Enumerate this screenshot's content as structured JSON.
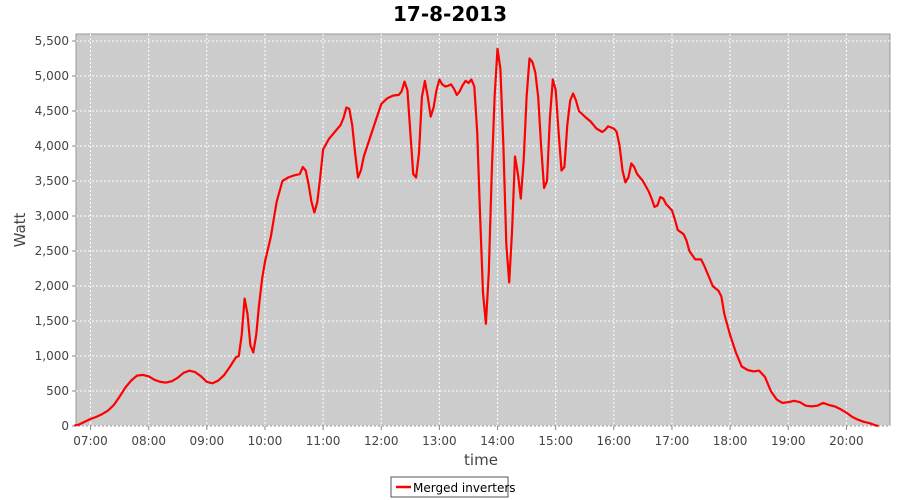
{
  "chart_data": {
    "type": "line",
    "title": "17-8-2013",
    "xlabel": "time",
    "ylabel": "Watt",
    "x_unit": "hours of day",
    "xlim": [
      6.75,
      20.75
    ],
    "ylim": [
      0,
      5600
    ],
    "x_tick_values": [
      7,
      8,
      9,
      10,
      11,
      12,
      13,
      14,
      15,
      16,
      17,
      18,
      19,
      20
    ],
    "x_tick_labels": [
      "07:00",
      "08:00",
      "09:00",
      "10:00",
      "11:00",
      "12:00",
      "13:00",
      "14:00",
      "15:00",
      "16:00",
      "17:00",
      "18:00",
      "19:00",
      "20:00"
    ],
    "y_tick_values": [
      0,
      500,
      1000,
      1500,
      2000,
      2500,
      3000,
      3500,
      4000,
      4500,
      5000,
      5500
    ],
    "y_tick_labels": [
      "0",
      "500",
      "1,000",
      "1,500",
      "2,000",
      "2,500",
      "3,000",
      "3,500",
      "4,000",
      "4,500",
      "5,000",
      "5,500"
    ],
    "grid": true,
    "legend_position": "bottom-center",
    "colors": {
      "plot_background": "#cccccc",
      "series": "#ff0000",
      "grid": "#ffffff"
    },
    "series": [
      {
        "name": "Merged inverters",
        "color": "#ff0000",
        "points": [
          [
            6.72,
            5
          ],
          [
            6.8,
            20
          ],
          [
            6.9,
            60
          ],
          [
            7.0,
            100
          ],
          [
            7.1,
            130
          ],
          [
            7.2,
            170
          ],
          [
            7.3,
            220
          ],
          [
            7.4,
            300
          ],
          [
            7.5,
            420
          ],
          [
            7.6,
            550
          ],
          [
            7.7,
            650
          ],
          [
            7.8,
            720
          ],
          [
            7.9,
            730
          ],
          [
            8.0,
            710
          ],
          [
            8.1,
            660
          ],
          [
            8.2,
            630
          ],
          [
            8.3,
            620
          ],
          [
            8.4,
            640
          ],
          [
            8.5,
            690
          ],
          [
            8.6,
            760
          ],
          [
            8.7,
            790
          ],
          [
            8.8,
            770
          ],
          [
            8.9,
            710
          ],
          [
            9.0,
            630
          ],
          [
            9.1,
            610
          ],
          [
            9.2,
            650
          ],
          [
            9.3,
            730
          ],
          [
            9.4,
            850
          ],
          [
            9.5,
            980
          ],
          [
            9.55,
            1000
          ],
          [
            9.6,
            1300
          ],
          [
            9.65,
            1820
          ],
          [
            9.7,
            1600
          ],
          [
            9.75,
            1150
          ],
          [
            9.8,
            1050
          ],
          [
            9.85,
            1300
          ],
          [
            9.9,
            1750
          ],
          [
            9.95,
            2100
          ],
          [
            10.0,
            2350
          ],
          [
            10.1,
            2700
          ],
          [
            10.2,
            3200
          ],
          [
            10.3,
            3500
          ],
          [
            10.4,
            3550
          ],
          [
            10.5,
            3580
          ],
          [
            10.6,
            3600
          ],
          [
            10.65,
            3700
          ],
          [
            10.7,
            3650
          ],
          [
            10.75,
            3450
          ],
          [
            10.8,
            3200
          ],
          [
            10.85,
            3050
          ],
          [
            10.9,
            3200
          ],
          [
            10.95,
            3550
          ],
          [
            11.0,
            3950
          ],
          [
            11.1,
            4100
          ],
          [
            11.2,
            4200
          ],
          [
            11.3,
            4300
          ],
          [
            11.35,
            4400
          ],
          [
            11.4,
            4550
          ],
          [
            11.45,
            4530
          ],
          [
            11.5,
            4300
          ],
          [
            11.55,
            3900
          ],
          [
            11.6,
            3550
          ],
          [
            11.65,
            3650
          ],
          [
            11.7,
            3850
          ],
          [
            11.8,
            4100
          ],
          [
            11.9,
            4350
          ],
          [
            12.0,
            4600
          ],
          [
            12.1,
            4680
          ],
          [
            12.2,
            4720
          ],
          [
            12.3,
            4730
          ],
          [
            12.35,
            4780
          ],
          [
            12.4,
            4920
          ],
          [
            12.45,
            4800
          ],
          [
            12.5,
            4200
          ],
          [
            12.55,
            3600
          ],
          [
            12.6,
            3550
          ],
          [
            12.65,
            3900
          ],
          [
            12.7,
            4700
          ],
          [
            12.75,
            4930
          ],
          [
            12.8,
            4700
          ],
          [
            12.85,
            4420
          ],
          [
            12.9,
            4550
          ],
          [
            12.95,
            4800
          ],
          [
            13.0,
            4950
          ],
          [
            13.05,
            4880
          ],
          [
            13.1,
            4850
          ],
          [
            13.15,
            4860
          ],
          [
            13.2,
            4880
          ],
          [
            13.25,
            4820
          ],
          [
            13.3,
            4730
          ],
          [
            13.35,
            4780
          ],
          [
            13.4,
            4870
          ],
          [
            13.45,
            4930
          ],
          [
            13.5,
            4900
          ],
          [
            13.55,
            4950
          ],
          [
            13.6,
            4850
          ],
          [
            13.65,
            4200
          ],
          [
            13.7,
            3000
          ],
          [
            13.75,
            1900
          ],
          [
            13.8,
            1460
          ],
          [
            13.85,
            2200
          ],
          [
            13.9,
            3600
          ],
          [
            13.95,
            4700
          ],
          [
            14.0,
            5390
          ],
          [
            14.05,
            5100
          ],
          [
            14.1,
            4000
          ],
          [
            14.15,
            2600
          ],
          [
            14.2,
            2050
          ],
          [
            14.25,
            2800
          ],
          [
            14.3,
            3850
          ],
          [
            14.35,
            3600
          ],
          [
            14.4,
            3250
          ],
          [
            14.45,
            3800
          ],
          [
            14.5,
            4700
          ],
          [
            14.55,
            5250
          ],
          [
            14.6,
            5200
          ],
          [
            14.65,
            5050
          ],
          [
            14.7,
            4700
          ],
          [
            14.75,
            4000
          ],
          [
            14.8,
            3400
          ],
          [
            14.85,
            3500
          ],
          [
            14.9,
            4400
          ],
          [
            14.95,
            4950
          ],
          [
            15.0,
            4800
          ],
          [
            15.05,
            4200
          ],
          [
            15.1,
            3650
          ],
          [
            15.15,
            3700
          ],
          [
            15.2,
            4300
          ],
          [
            15.25,
            4650
          ],
          [
            15.3,
            4750
          ],
          [
            15.35,
            4650
          ],
          [
            15.4,
            4500
          ],
          [
            15.5,
            4420
          ],
          [
            15.6,
            4350
          ],
          [
            15.7,
            4250
          ],
          [
            15.8,
            4200
          ],
          [
            15.85,
            4230
          ],
          [
            15.9,
            4280
          ],
          [
            16.0,
            4250
          ],
          [
            16.05,
            4200
          ],
          [
            16.1,
            4000
          ],
          [
            16.15,
            3650
          ],
          [
            16.2,
            3480
          ],
          [
            16.25,
            3550
          ],
          [
            16.3,
            3750
          ],
          [
            16.35,
            3700
          ],
          [
            16.4,
            3600
          ],
          [
            16.5,
            3500
          ],
          [
            16.6,
            3350
          ],
          [
            16.65,
            3250
          ],
          [
            16.7,
            3130
          ],
          [
            16.75,
            3150
          ],
          [
            16.8,
            3270
          ],
          [
            16.85,
            3250
          ],
          [
            16.9,
            3170
          ],
          [
            17.0,
            3080
          ],
          [
            17.05,
            2950
          ],
          [
            17.1,
            2800
          ],
          [
            17.2,
            2740
          ],
          [
            17.25,
            2650
          ],
          [
            17.3,
            2500
          ],
          [
            17.4,
            2380
          ],
          [
            17.5,
            2380
          ],
          [
            17.55,
            2300
          ],
          [
            17.6,
            2200
          ],
          [
            17.7,
            2000
          ],
          [
            17.8,
            1930
          ],
          [
            17.85,
            1850
          ],
          [
            17.9,
            1600
          ],
          [
            18.0,
            1300
          ],
          [
            18.1,
            1050
          ],
          [
            18.2,
            850
          ],
          [
            18.3,
            800
          ],
          [
            18.4,
            780
          ],
          [
            18.5,
            790
          ],
          [
            18.6,
            700
          ],
          [
            18.7,
            500
          ],
          [
            18.8,
            380
          ],
          [
            18.9,
            330
          ],
          [
            19.0,
            340
          ],
          [
            19.1,
            360
          ],
          [
            19.2,
            340
          ],
          [
            19.3,
            290
          ],
          [
            19.4,
            280
          ],
          [
            19.5,
            290
          ],
          [
            19.6,
            330
          ],
          [
            19.7,
            300
          ],
          [
            19.8,
            280
          ],
          [
            19.9,
            240
          ],
          [
            20.0,
            190
          ],
          [
            20.1,
            130
          ],
          [
            20.2,
            90
          ],
          [
            20.3,
            60
          ],
          [
            20.4,
            40
          ],
          [
            20.5,
            10
          ],
          [
            20.55,
            0
          ]
        ]
      }
    ]
  }
}
